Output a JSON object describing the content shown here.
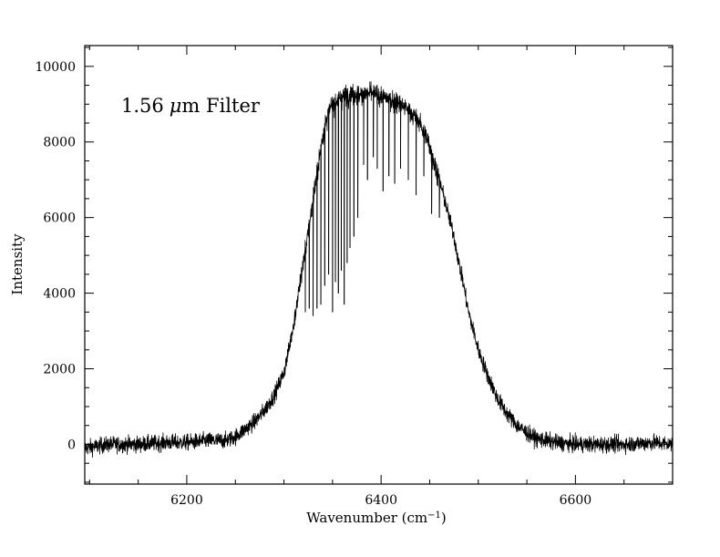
{
  "chart_data": {
    "type": "line",
    "annotation": {
      "number": "1.56",
      "unit_symbol": "μ",
      "unit_rest": "m Filter"
    },
    "xlabel": {
      "main": "Wavenumber (cm",
      "superscript": "−1",
      "close": ")"
    },
    "ylabel": "Intensity",
    "xlim": [
      6095,
      6700
    ],
    "ylim": [
      -1050,
      10550
    ],
    "x_ticks": [
      6200,
      6400,
      6600
    ],
    "x_minor_step": 50,
    "y_ticks": [
      0,
      2000,
      4000,
      6000,
      8000,
      10000
    ],
    "y_minor_step": 500,
    "grid": false,
    "legend": "none",
    "series": [
      {
        "x": [
          6095,
          6120,
          6150,
          6180,
          6200,
          6220,
          6240,
          6250,
          6260,
          6270,
          6280,
          6290,
          6300,
          6305,
          6310,
          6315,
          6320,
          6325,
          6330,
          6335,
          6340,
          6345,
          6350,
          6355,
          6360,
          6365,
          6370,
          6380,
          6390,
          6400,
          6410,
          6420,
          6430,
          6440,
          6450,
          6455,
          6460,
          6465,
          6470,
          6475,
          6480,
          6485,
          6490,
          6495,
          6500,
          6510,
          6520,
          6530,
          6540,
          6550,
          6560,
          6580,
          6600,
          6620,
          6650,
          6680,
          6700
        ],
        "values": [
          -100,
          0,
          0,
          50,
          50,
          100,
          100,
          200,
          400,
          600,
          900,
          1300,
          1900,
          2500,
          3200,
          4000,
          4800,
          5600,
          6500,
          7300,
          8200,
          8700,
          9000,
          9100,
          9200,
          9250,
          9250,
          9250,
          9300,
          9200,
          9100,
          9000,
          8800,
          8500,
          7900,
          7400,
          7000,
          6500,
          6000,
          5500,
          4800,
          4200,
          3500,
          3000,
          2500,
          1800,
          1200,
          800,
          500,
          300,
          150,
          50,
          0,
          0,
          0,
          50,
          0
        ],
        "noise": 150,
        "absorption_lines": [
          {
            "x": 6322,
            "y": 3500
          },
          {
            "x": 6326,
            "y": 3600
          },
          {
            "x": 6330,
            "y": 3400
          },
          {
            "x": 6334,
            "y": 3600
          },
          {
            "x": 6338,
            "y": 3700
          },
          {
            "x": 6342,
            "y": 4200
          },
          {
            "x": 6346,
            "y": 4500
          },
          {
            "x": 6350,
            "y": 3500
          },
          {
            "x": 6353,
            "y": 4300
          },
          {
            "x": 6356,
            "y": 4000
          },
          {
            "x": 6359,
            "y": 4600
          },
          {
            "x": 6362,
            "y": 3700
          },
          {
            "x": 6365,
            "y": 4800
          },
          {
            "x": 6368,
            "y": 5200
          },
          {
            "x": 6372,
            "y": 5500
          },
          {
            "x": 6376,
            "y": 6000
          },
          {
            "x": 6382,
            "y": 7400
          },
          {
            "x": 6386,
            "y": 7000
          },
          {
            "x": 6392,
            "y": 7600
          },
          {
            "x": 6396,
            "y": 7300
          },
          {
            "x": 6402,
            "y": 6700
          },
          {
            "x": 6408,
            "y": 7100
          },
          {
            "x": 6414,
            "y": 6900
          },
          {
            "x": 6420,
            "y": 7300
          },
          {
            "x": 6428,
            "y": 7000
          },
          {
            "x": 6436,
            "y": 6600
          },
          {
            "x": 6444,
            "y": 7100
          },
          {
            "x": 6452,
            "y": 6100
          },
          {
            "x": 6460,
            "y": 6000
          }
        ]
      }
    ]
  }
}
